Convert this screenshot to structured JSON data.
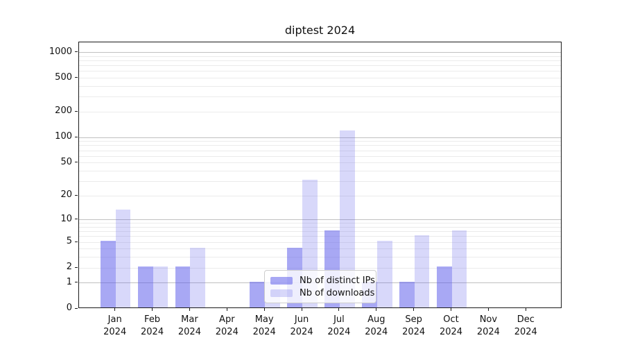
{
  "title": "diptest 2024",
  "legend": {
    "items": [
      {
        "label": "Nb of distinct IPs",
        "color": "rgba(90,90,235,0.53)"
      },
      {
        "label": "Nb of downloads",
        "color": "rgba(90,90,235,0.24)"
      }
    ]
  },
  "chart_data": {
    "type": "bar",
    "title": "diptest 2024",
    "categories": [
      "Jan",
      "Feb",
      "Mar",
      "Apr",
      "May",
      "Jun",
      "Jul",
      "Aug",
      "Sep",
      "Oct",
      "Nov",
      "Dec"
    ],
    "year_label": "2024",
    "series": [
      {
        "name": "Nb of distinct IPs",
        "color": "rgba(90,90,235,0.53)",
        "values": [
          5,
          2,
          2,
          0,
          1,
          4,
          7,
          1,
          1,
          2,
          0,
          0
        ]
      },
      {
        "name": "Nb of downloads",
        "color": "rgba(90,90,235,0.24)",
        "values": [
          13,
          2,
          4,
          0,
          1,
          30,
          117,
          5,
          6,
          7,
          0,
          0
        ]
      }
    ],
    "yscale": "log1p",
    "yticks": [
      0,
      1,
      2,
      5,
      10,
      20,
      50,
      100,
      200,
      500,
      1000
    ],
    "ylim": [
      0,
      1300
    ],
    "xlabel": "",
    "ylabel": "",
    "grid": "horizontal (major dark at 1,10,100,1000; log minors light)",
    "legend_position": "inside lower center"
  }
}
